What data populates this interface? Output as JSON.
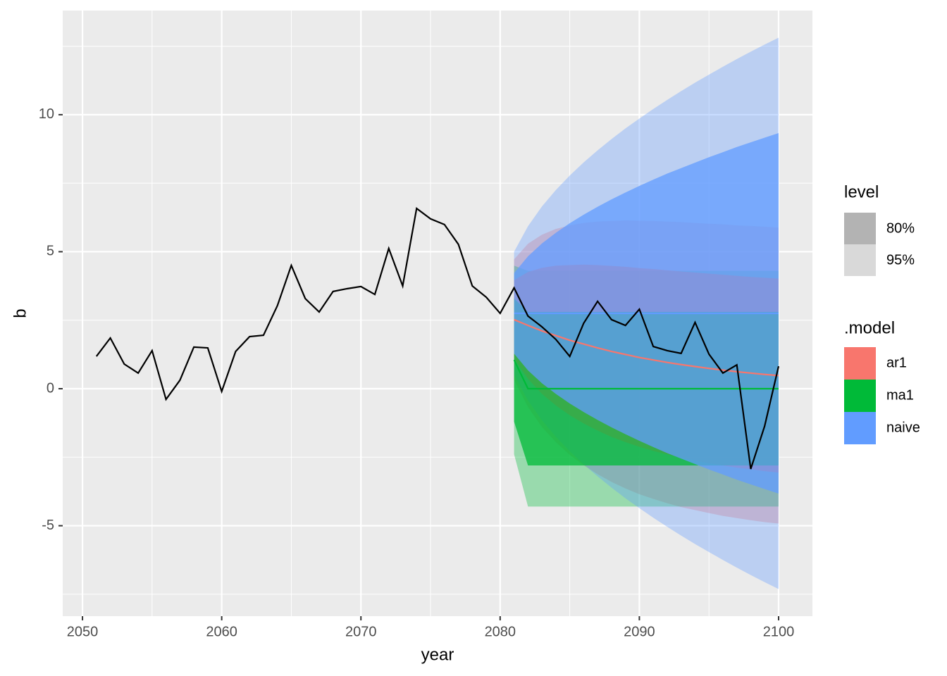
{
  "chart_data": {
    "type": "line",
    "x_label": "year",
    "y_label": "b",
    "xlim": [
      2048.58,
      2102.43
    ],
    "ylim": [
      -8.3,
      13.8
    ],
    "xticks": [
      2050,
      2060,
      2070,
      2080,
      2090,
      2100
    ],
    "yticks": [
      -5,
      0,
      5,
      10
    ],
    "grid": true,
    "x": [
      2051,
      2052,
      2053,
      2054,
      2055,
      2056,
      2057,
      2058,
      2059,
      2060,
      2061,
      2062,
      2063,
      2064,
      2065,
      2066,
      2067,
      2068,
      2069,
      2070,
      2071,
      2072,
      2073,
      2074,
      2075,
      2076,
      2077,
      2078,
      2079,
      2080,
      2081,
      2082,
      2083,
      2084,
      2085,
      2086,
      2087,
      2088,
      2089,
      2090,
      2091,
      2092,
      2093,
      2094,
      2095,
      2096,
      2097,
      2098,
      2099,
      2100
    ],
    "series": [
      {
        "color": "#000000",
        "values": [
          1.18,
          1.85,
          0.9,
          0.57,
          1.39,
          -0.39,
          0.31,
          1.52,
          1.49,
          -0.1,
          1.36,
          1.9,
          1.95,
          3.03,
          4.5,
          3.29,
          2.8,
          3.55,
          3.65,
          3.73,
          3.44,
          5.12,
          3.75,
          6.58,
          6.2,
          5.99,
          5.27,
          3.75,
          3.34,
          2.75,
          3.68,
          2.65,
          2.26,
          1.8,
          1.18,
          2.39,
          3.19,
          2.52,
          2.31,
          2.9,
          1.54,
          1.39,
          1.29,
          2.42,
          1.26,
          0.57,
          0.87,
          -2.93,
          -1.36,
          0.82
        ]
      }
    ],
    "forecast": {
      "x": [
        2081,
        2082,
        2083,
        2084,
        2085,
        2086,
        2087,
        2088,
        2089,
        2090,
        2091,
        2092,
        2093,
        2094,
        2095,
        2096,
        2097,
        2098,
        2099,
        2100
      ],
      "models": [
        {
          "name": "ar1",
          "color": "#F8766D",
          "mean": [
            2.52,
            2.31,
            2.11,
            1.94,
            1.77,
            1.63,
            1.49,
            1.36,
            1.25,
            1.14,
            1.05,
            0.96,
            0.88,
            0.81,
            0.74,
            0.68,
            0.62,
            0.57,
            0.52,
            0.48
          ],
          "lo80": [
            1.08,
            0.36,
            -0.19,
            -0.61,
            -0.97,
            -1.27,
            -1.53,
            -1.76,
            -1.95,
            -2.12,
            -2.27,
            -2.4,
            -2.52,
            -2.62,
            -2.72,
            -2.8,
            -2.88,
            -2.94,
            -3.01,
            -3.06
          ],
          "hi80": [
            3.96,
            4.26,
            4.41,
            4.49,
            4.51,
            4.53,
            4.51,
            4.48,
            4.45,
            4.4,
            4.37,
            4.32,
            4.28,
            4.24,
            4.2,
            4.16,
            4.12,
            4.08,
            4.05,
            4.02
          ],
          "lo95": [
            0.32,
            -0.67,
            -1.4,
            -1.95,
            -2.42,
            -2.79,
            -3.12,
            -3.4,
            -3.64,
            -3.85,
            -4.02,
            -4.18,
            -4.32,
            -4.43,
            -4.54,
            -4.64,
            -4.72,
            -4.8,
            -4.87,
            -4.92
          ],
          "hi95": [
            4.72,
            5.29,
            5.62,
            5.83,
            5.96,
            6.05,
            6.1,
            6.12,
            6.14,
            6.13,
            6.12,
            6.1,
            6.08,
            6.05,
            6.02,
            6.0,
            5.96,
            5.94,
            5.91,
            5.88
          ]
        },
        {
          "name": "ma1",
          "color": "#00BA38",
          "mean": [
            1.05,
            0,
            0,
            0,
            0,
            0,
            0,
            0,
            0,
            0,
            0,
            0,
            0,
            0,
            0,
            0,
            0,
            0,
            0,
            0
          ],
          "lo80": [
            -1.2,
            -2.8,
            -2.8,
            -2.8,
            -2.8,
            -2.8,
            -2.8,
            -2.8,
            -2.8,
            -2.8,
            -2.8,
            -2.8,
            -2.8,
            -2.8,
            -2.8,
            -2.8,
            -2.8,
            -2.8,
            -2.8,
            -2.8
          ],
          "hi80": [
            3.3,
            2.8,
            2.8,
            2.8,
            2.8,
            2.8,
            2.8,
            2.8,
            2.8,
            2.8,
            2.8,
            2.8,
            2.8,
            2.8,
            2.8,
            2.8,
            2.8,
            2.8,
            2.8,
            2.8
          ],
          "lo95": [
            -2.39,
            -4.3,
            -4.3,
            -4.3,
            -4.3,
            -4.3,
            -4.3,
            -4.3,
            -4.3,
            -4.3,
            -4.3,
            -4.3,
            -4.3,
            -4.3,
            -4.3,
            -4.3,
            -4.3,
            -4.3,
            -4.3,
            -4.3
          ],
          "hi95": [
            4.49,
            4.3,
            4.3,
            4.3,
            4.3,
            4.3,
            4.3,
            4.3,
            4.3,
            4.3,
            4.3,
            4.3,
            4.3,
            4.3,
            4.3,
            4.3,
            4.3,
            4.3,
            4.3,
            4.3
          ]
        },
        {
          "name": "naive",
          "color": "#619CFF",
          "mean": [
            2.75,
            2.75,
            2.75,
            2.75,
            2.75,
            2.75,
            2.75,
            2.75,
            2.75,
            2.75,
            2.75,
            2.75,
            2.75,
            2.75,
            2.75,
            2.75,
            2.75,
            2.75,
            2.75,
            2.75
          ],
          "lo80": [
            1.28,
            0.67,
            0.2,
            -0.19,
            -0.54,
            -0.85,
            -1.14,
            -1.41,
            -1.66,
            -1.9,
            -2.13,
            -2.35,
            -2.55,
            -2.75,
            -2.95,
            -3.13,
            -3.32,
            -3.49,
            -3.66,
            -3.83
          ],
          "hi80": [
            4.22,
            4.83,
            5.3,
            5.69,
            6.04,
            6.35,
            6.64,
            6.91,
            7.16,
            7.4,
            7.63,
            7.85,
            8.05,
            8.25,
            8.45,
            8.63,
            8.82,
            8.99,
            9.16,
            9.33
          ],
          "lo95": [
            0.5,
            -0.43,
            -1.15,
            -1.75,
            -2.28,
            -2.76,
            -3.2,
            -3.61,
            -4.0,
            -4.36,
            -4.71,
            -5.04,
            -5.36,
            -5.67,
            -5.96,
            -6.25,
            -6.53,
            -6.8,
            -7.06,
            -7.31
          ],
          "hi95": [
            5.0,
            5.93,
            6.65,
            7.25,
            7.78,
            8.26,
            8.7,
            9.11,
            9.5,
            9.86,
            10.21,
            10.54,
            10.86,
            11.17,
            11.46,
            11.75,
            12.03,
            12.3,
            12.56,
            12.81
          ]
        }
      ]
    },
    "legend": {
      "level_title": "level",
      "levels": [
        {
          "name": "80%",
          "key": "lo80 hi80",
          "color": "#b3b3b3",
          "alpha": 0.75
        },
        {
          "name": "95%",
          "key": "lo95 hi95",
          "color": "#d9d9d9",
          "alpha": 0.35
        }
      ],
      "model_title": ".model"
    }
  }
}
